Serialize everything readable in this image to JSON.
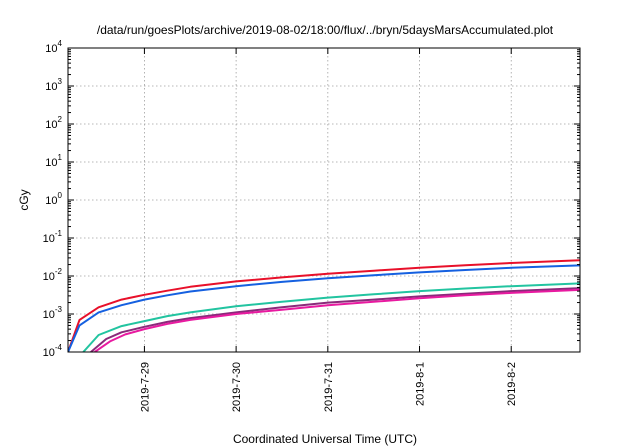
{
  "chart_data": {
    "type": "line",
    "title": "/data/run/goesPlots/archive/2019-08-02/18:00/flux/../bryn/5daysMarsAccumulated.plot",
    "xlabel": "Coordinated Universal Time (UTC)",
    "ylabel": "cGy",
    "yscale": "log",
    "ylim": [
      0.0001,
      10000
    ],
    "xlim": [
      "2019-07-28 04:00",
      "2019-08-02 18:00"
    ],
    "x_ticks": [
      "2019-7-29",
      "2019-7-30",
      "2019-7-31",
      "2019-8-1",
      "2019-8-2"
    ],
    "y_ticks": [
      {
        "value": 0.0001,
        "base": "10",
        "exp": "-4"
      },
      {
        "value": 0.001,
        "base": "10",
        "exp": "-3"
      },
      {
        "value": 0.01,
        "base": "10",
        "exp": "-2"
      },
      {
        "value": 0.1,
        "base": "10",
        "exp": "-1"
      },
      {
        "value": 1,
        "base": "10",
        "exp": "0"
      },
      {
        "value": 10,
        "base": "10",
        "exp": "1"
      },
      {
        "value": 100,
        "base": "10",
        "exp": "2"
      },
      {
        "value": 1000,
        "base": "10",
        "exp": "3"
      },
      {
        "value": 10000,
        "base": "10",
        "exp": "4"
      }
    ],
    "grid": true,
    "series": [
      {
        "color": "#e8102a",
        "x": [
          "2019-07-28 04:00",
          "2019-07-28 07:00",
          "2019-07-28 12:00",
          "2019-07-28 18:00",
          "2019-07-29 00:00",
          "2019-07-29 06:00",
          "2019-07-29 12:00",
          "2019-07-30 00:00",
          "2019-07-30 12:00",
          "2019-07-31 00:00",
          "2019-07-31 12:00",
          "2019-08-01 00:00",
          "2019-08-01 12:00",
          "2019-08-02 00:00",
          "2019-08-02 18:00"
        ],
        "y": [
          0.0001,
          0.0007,
          0.0015,
          0.0024,
          0.0032,
          0.0041,
          0.0052,
          0.0072,
          0.0092,
          0.0114,
          0.0138,
          0.0165,
          0.0192,
          0.022,
          0.026
        ]
      },
      {
        "color": "#1560e0",
        "x": [
          "2019-07-28 04:00",
          "2019-07-28 07:00",
          "2019-07-28 12:00",
          "2019-07-28 18:00",
          "2019-07-29 00:00",
          "2019-07-29 06:00",
          "2019-07-29 12:00",
          "2019-07-30 00:00",
          "2019-07-30 12:00",
          "2019-07-31 00:00",
          "2019-07-31 12:00",
          "2019-08-01 00:00",
          "2019-08-01 12:00",
          "2019-08-02 00:00",
          "2019-08-02 18:00"
        ],
        "y": [
          0.0001,
          0.0005,
          0.0011,
          0.0017,
          0.0024,
          0.0031,
          0.0039,
          0.0054,
          0.007,
          0.0087,
          0.0105,
          0.0124,
          0.0144,
          0.0164,
          0.019
        ]
      },
      {
        "color": "#22c4a0",
        "x": [
          "2019-07-28 08:00",
          "2019-07-28 12:00",
          "2019-07-28 18:00",
          "2019-07-29 00:00",
          "2019-07-29 06:00",
          "2019-07-29 12:00",
          "2019-07-30 00:00",
          "2019-07-30 12:00",
          "2019-07-31 00:00",
          "2019-07-31 12:00",
          "2019-08-01 00:00",
          "2019-08-01 12:00",
          "2019-08-02 00:00",
          "2019-08-02 18:00"
        ],
        "y": [
          0.0001,
          0.00028,
          0.00048,
          0.00065,
          0.00088,
          0.0011,
          0.0016,
          0.0021,
          0.0027,
          0.0033,
          0.004,
          0.0047,
          0.0054,
          0.0064
        ]
      },
      {
        "color": "#8a2a7a",
        "x": [
          "2019-07-28 10:00",
          "2019-07-28 14:00",
          "2019-07-28 18:00",
          "2019-07-29 00:00",
          "2019-07-29 06:00",
          "2019-07-29 12:00",
          "2019-07-30 00:00",
          "2019-07-30 12:00",
          "2019-07-31 00:00",
          "2019-07-31 12:00",
          "2019-08-01 00:00",
          "2019-08-01 12:00",
          "2019-08-02 00:00",
          "2019-08-02 18:00"
        ],
        "y": [
          0.0001,
          0.00022,
          0.00033,
          0.00046,
          0.00062,
          0.00078,
          0.0011,
          0.0015,
          0.002,
          0.0024,
          0.0029,
          0.0034,
          0.004,
          0.0048
        ]
      },
      {
        "color": "#e81aa0",
        "x": [
          "2019-07-28 11:00",
          "2019-07-28 15:00",
          "2019-07-28 19:00",
          "2019-07-29 00:00",
          "2019-07-29 06:00",
          "2019-07-29 12:00",
          "2019-07-30 00:00",
          "2019-07-30 12:00",
          "2019-07-31 00:00",
          "2019-07-31 12:00",
          "2019-08-01 00:00",
          "2019-08-01 12:00",
          "2019-08-02 00:00",
          "2019-08-02 18:00"
        ],
        "y": [
          0.0001,
          0.00019,
          0.00029,
          0.0004,
          0.00055,
          0.0007,
          0.001,
          0.0013,
          0.0017,
          0.0021,
          0.0026,
          0.0031,
          0.0036,
          0.0043
        ]
      }
    ]
  }
}
